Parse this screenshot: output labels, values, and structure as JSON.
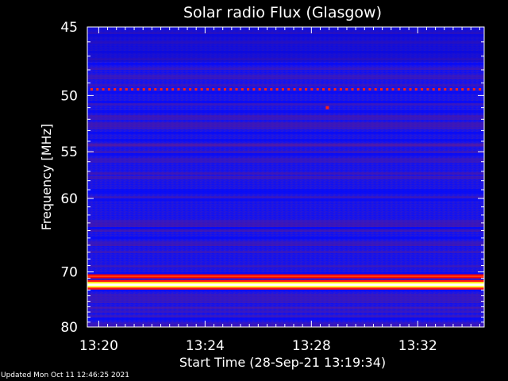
{
  "chart_data": {
    "type": "heatmap",
    "title": "Solar radio Flux (Glasgow)",
    "xlabel": "Start Time (28-Sep-21 13:19:34)",
    "ylabel": "Frequency [MHz]",
    "x_ticks": [
      "13:20",
      "13:24",
      "13:28",
      "13:32"
    ],
    "x_tick_minutes": [
      20,
      24,
      28,
      32
    ],
    "xlim_minutes": [
      19.57,
      34.5
    ],
    "y_ticks": [
      45,
      50,
      55,
      60,
      70,
      80
    ],
    "ylim": [
      45,
      80
    ],
    "y_scale": "reciprocal",
    "colormap": [
      "#000000",
      "#0000ff",
      "#ff0000",
      "#ffff00",
      "#ffffff"
    ],
    "bright_bands_mhz": [
      {
        "freq": 70.7,
        "level": "red"
      },
      {
        "freq": 72.1,
        "level": "white"
      },
      {
        "freq": 49.5,
        "level": "red-dotted"
      }
    ]
  },
  "footer": {
    "updated": "Updated Mon Oct 11 12:46:25 2021"
  }
}
